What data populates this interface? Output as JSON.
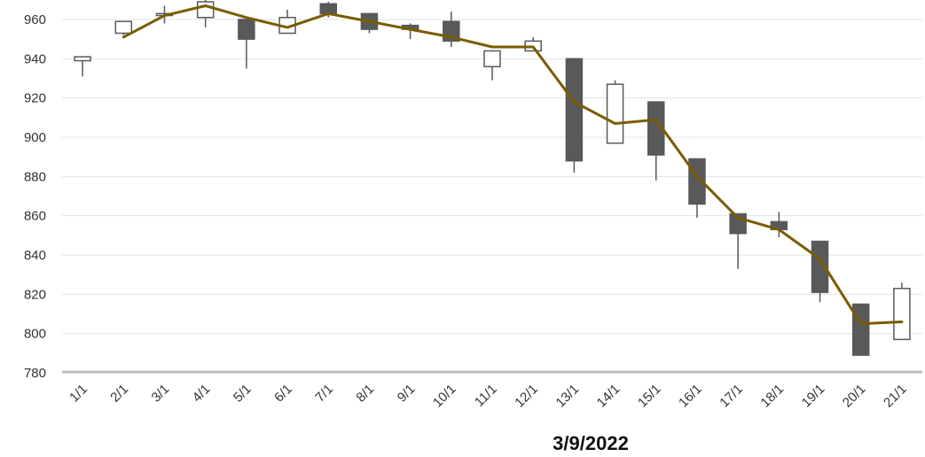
{
  "chart_data": {
    "type": "candlestick",
    "xlabel": "3/9/2022",
    "ylabel": "",
    "ylim": [
      780,
      970
    ],
    "yticks": [
      780,
      800,
      820,
      840,
      860,
      880,
      900,
      920,
      940,
      960
    ],
    "grid": true,
    "legend": "none",
    "categories": [
      "1/1",
      "2/1",
      "3/1",
      "4/1",
      "5/1",
      "6/1",
      "7/1",
      "8/1",
      "9/1",
      "10/1",
      "11/1",
      "12/1",
      "13/1",
      "14/1",
      "15/1",
      "16/1",
      "17/1",
      "18/1",
      "19/1",
      "20/1",
      "21/1"
    ],
    "candles": [
      {
        "open": 939,
        "high": 941,
        "low": 931,
        "close": 941
      },
      {
        "open": 953,
        "high": 959,
        "low": 952,
        "close": 959
      },
      {
        "open": 962,
        "high": 967,
        "low": 958,
        "close": 963
      },
      {
        "open": 961,
        "high": 970,
        "low": 956,
        "close": 969
      },
      {
        "open": 960,
        "high": 960,
        "low": 935,
        "close": 950
      },
      {
        "open": 953,
        "high": 965,
        "low": 953,
        "close": 961
      },
      {
        "open": 968,
        "high": 969,
        "low": 961,
        "close": 963
      },
      {
        "open": 963,
        "high": 963,
        "low": 953,
        "close": 955
      },
      {
        "open": 957,
        "high": 958,
        "low": 950,
        "close": 955
      },
      {
        "open": 959,
        "high": 964,
        "low": 946,
        "close": 949
      },
      {
        "open": 936,
        "high": 944,
        "low": 929,
        "close": 944
      },
      {
        "open": 944,
        "high": 951,
        "low": 944,
        "close": 949
      },
      {
        "open": 940,
        "high": 940,
        "low": 882,
        "close": 888
      },
      {
        "open": 897,
        "high": 929,
        "low": 897,
        "close": 927
      },
      {
        "open": 918,
        "high": 918,
        "low": 878,
        "close": 891
      },
      {
        "open": 889,
        "high": 889,
        "low": 859,
        "close": 866
      },
      {
        "open": 861,
        "high": 861,
        "low": 833,
        "close": 851
      },
      {
        "open": 857,
        "high": 862,
        "low": 849,
        "close": 853
      },
      {
        "open": 847,
        "high": 847,
        "low": 816,
        "close": 821
      },
      {
        "open": 815,
        "high": 815,
        "low": 789,
        "close": 789
      },
      {
        "open": 797,
        "high": 826,
        "low": 797,
        "close": 823
      }
    ],
    "series": [
      {
        "type": "line",
        "color": "#7a5c00",
        "values": [
          null,
          951,
          962,
          967,
          961,
          956,
          963,
          959,
          955,
          951,
          946,
          946,
          918,
          907,
          909,
          880,
          859,
          853,
          838,
          805,
          806
        ]
      }
    ],
    "colors": {
      "down_fill": "#595959",
      "up_fill": "#ffffff",
      "candle_stroke": "#595959",
      "line": "#7a5c00",
      "grid": "#e3e3e3",
      "axis": "#bfbfbf"
    }
  }
}
